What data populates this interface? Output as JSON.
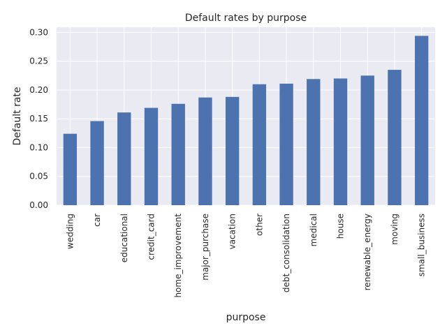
{
  "chart_data": {
    "type": "bar",
    "title": "Default rates by purpose",
    "xlabel": "purpose",
    "ylabel": "Default rate",
    "categories": [
      "wedding",
      "car",
      "educational",
      "credit_card",
      "home_improvement",
      "major_purchase",
      "vacation",
      "other",
      "debt_consolidation",
      "medical",
      "house",
      "renewable_energy",
      "moving",
      "small_business"
    ],
    "values": [
      0.124,
      0.146,
      0.161,
      0.169,
      0.176,
      0.187,
      0.188,
      0.21,
      0.211,
      0.219,
      0.22,
      0.225,
      0.235,
      0.294
    ],
    "ylim": [
      0,
      0.309
    ],
    "yticks": [
      "0.00",
      "0.05",
      "0.10",
      "0.15",
      "0.20",
      "0.25",
      "0.30"
    ],
    "grid": true,
    "bar_color": "#4c72b0",
    "background_color": "#eaeaf2"
  }
}
